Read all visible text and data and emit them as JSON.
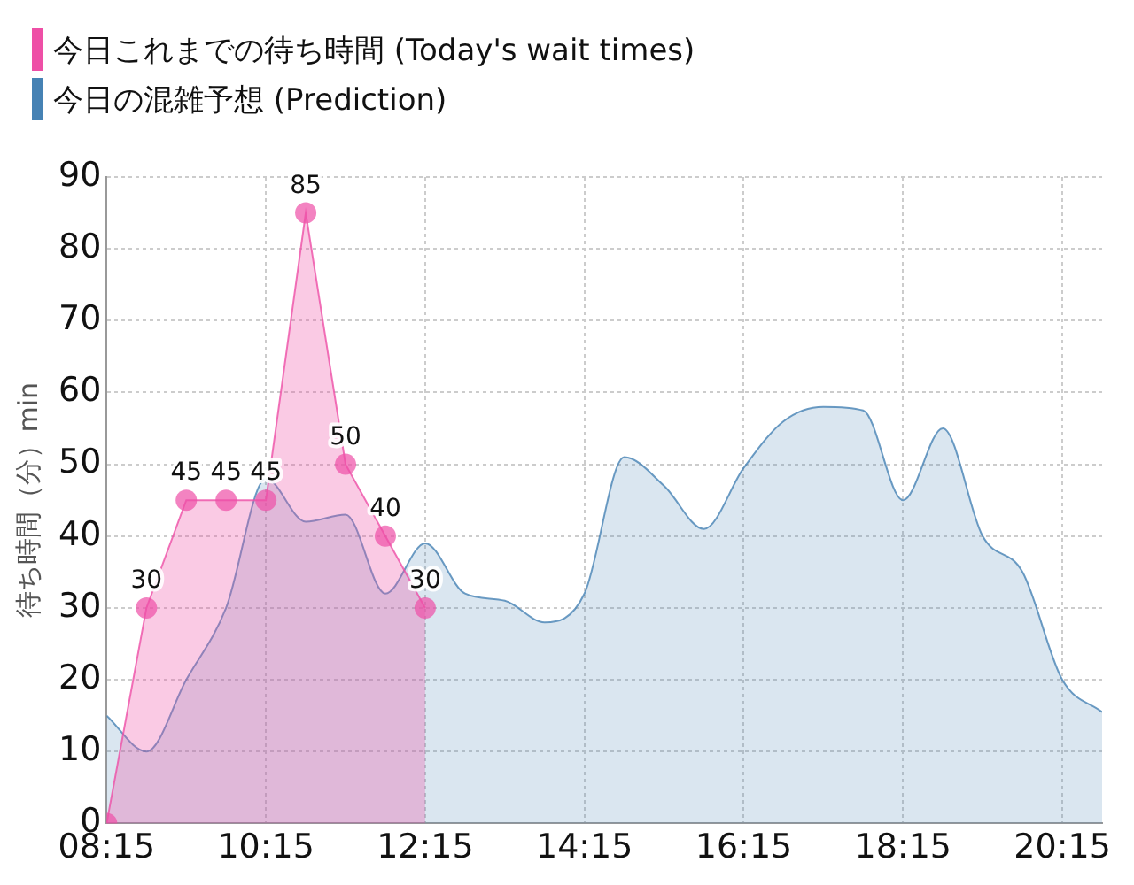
{
  "chart_data": {
    "type": "area",
    "ylabel": "待ち時間（分）min",
    "legend": "top left",
    "grid": true,
    "xlim": [
      8.25,
      20.75
    ],
    "xticks": [
      {
        "value": 8.25,
        "label": "08:15"
      },
      {
        "value": 10.25,
        "label": "10:15"
      },
      {
        "value": 12.25,
        "label": "12:15"
      },
      {
        "value": 14.25,
        "label": "14:15"
      },
      {
        "value": 16.25,
        "label": "16:15"
      },
      {
        "value": 18.25,
        "label": "18:15"
      },
      {
        "value": 20.25,
        "label": "20:15"
      }
    ],
    "ylim": [
      0,
      90
    ],
    "yticks": [
      0,
      10,
      20,
      30,
      40,
      50,
      60,
      70,
      80,
      90
    ],
    "series": [
      {
        "name": "今日の混雑予想 (Prediction)",
        "color": "#4682b4",
        "marker": "none",
        "x": [
          8.25,
          8.75,
          9.25,
          9.75,
          10.25,
          10.75,
          11.25,
          11.75,
          12.25,
          12.75,
          13.25,
          13.75,
          14.25,
          14.75,
          15.25,
          15.75,
          16.25,
          16.75,
          17.25,
          17.75,
          18.25,
          18.75,
          19.25,
          19.75,
          20.25,
          20.75
        ],
        "values": [
          15,
          10,
          20,
          30,
          48,
          42,
          43,
          32,
          39,
          32,
          31,
          28,
          32,
          51,
          47,
          41,
          49.5,
          56,
          58,
          57.5,
          45,
          55,
          40,
          35,
          20,
          15.5
        ]
      },
      {
        "name": "今日これまでの待ち時間 (Today's wait times)",
        "color": "#ee4fa6",
        "marker": "circle",
        "x": [
          8.25,
          8.75,
          9.25,
          9.75,
          10.25,
          10.75,
          11.25,
          11.75,
          12.25
        ],
        "values": [
          0,
          30,
          45,
          45,
          45,
          85,
          50,
          40,
          30
        ],
        "value_labels": [
          null,
          "30",
          "45",
          "45",
          "45",
          "85",
          "50",
          "40",
          "30"
        ]
      }
    ]
  }
}
